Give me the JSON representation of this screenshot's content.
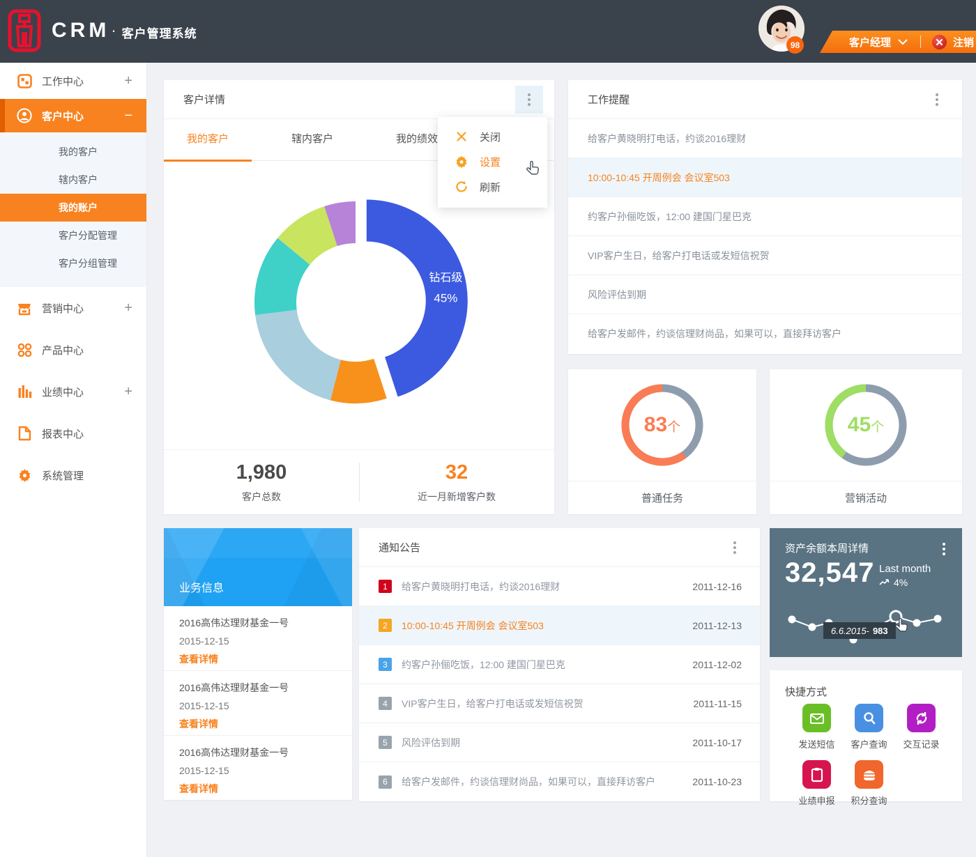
{
  "topbar": {
    "logo_text": "CRM",
    "logo_separator": "·",
    "app_subtitle": "客户管理系统",
    "avatar_badge": "98",
    "role_label": "客户经理",
    "logout_label": "注销"
  },
  "sidebar": {
    "items": [
      {
        "label": "工作中心",
        "icon": "grid-icon",
        "expand": "+",
        "active": false
      },
      {
        "label": "客户中心",
        "icon": "user-icon",
        "expand": "−",
        "active": true
      },
      {
        "label": "营销中心",
        "icon": "shop-icon",
        "expand": "+",
        "active": false
      },
      {
        "label": "产品中心",
        "icon": "products-icon",
        "expand": "",
        "active": false
      },
      {
        "label": "业绩中心",
        "icon": "chart-bars-icon",
        "expand": "+",
        "active": false
      },
      {
        "label": "报表中心",
        "icon": "report-icon",
        "expand": "",
        "active": false
      },
      {
        "label": "系统管理",
        "icon": "gear-icon",
        "expand": "",
        "active": false
      }
    ],
    "submenu": {
      "parent": "客户中心",
      "items": [
        {
          "label": "我的客户",
          "active": false
        },
        {
          "label": "辖内客户",
          "active": false
        },
        {
          "label": "我的账户",
          "active": true
        },
        {
          "label": "客户分配管理",
          "active": false
        },
        {
          "label": "客户分组管理",
          "active": false
        }
      ]
    }
  },
  "customer_card": {
    "title": "客户详情",
    "tabs": [
      {
        "label": "我的客户",
        "active": true
      },
      {
        "label": "辖内客户",
        "active": false
      },
      {
        "label": "我的绩效",
        "active": false
      }
    ],
    "stats": [
      {
        "value": "1,980",
        "label": "客户总数",
        "accent": false
      },
      {
        "value": "32",
        "label": "近一月新增客户数",
        "accent": true
      }
    ]
  },
  "context_menu": {
    "items": [
      {
        "label": "关闭",
        "icon": "close-icon",
        "highlighted": false
      },
      {
        "label": "设置",
        "icon": "gear-icon",
        "highlighted": true
      },
      {
        "label": "刷新",
        "icon": "refresh-icon",
        "highlighted": false
      }
    ]
  },
  "reminders": {
    "title": "工作提醒",
    "items": [
      {
        "text": "给客户黄晓明打电话，约谈2016理财",
        "highlighted": false
      },
      {
        "text": "10:00-10:45 开周例会 会议室503",
        "highlighted": true
      },
      {
        "text": "约客户孙俪吃饭，12:00 建国门星巴克",
        "highlighted": false
      },
      {
        "text": "VIP客户生日，给客户打电话或发短信祝贺",
        "highlighted": false
      },
      {
        "text": "风险评估到期",
        "highlighted": false
      },
      {
        "text": "给客户发邮件，约谈信理财尚品，如果可以，直接拜访客户",
        "highlighted": false
      }
    ]
  },
  "business_card": {
    "title": "业务信息",
    "items": [
      {
        "name": "2016高伟达理财基金一号",
        "date": "2015-12-15",
        "link": "查看详情"
      },
      {
        "name": "2016高伟达理财基金一号",
        "date": "2015-12-15",
        "link": "查看详情"
      },
      {
        "name": "2016高伟达理财基金一号",
        "date": "2015-12-15",
        "link": "查看详情"
      }
    ]
  },
  "notices": {
    "title": "通知公告",
    "items": [
      {
        "num": "1",
        "text": "给客户黄晓明打电话，约谈2016理财",
        "date": "2011-12-16",
        "badge_color": "#d0021b",
        "highlighted": false
      },
      {
        "num": "2",
        "text": "10:00-10:45 开周例会 会议室503",
        "date": "2011-12-13",
        "badge_color": "#f5a623",
        "highlighted": true
      },
      {
        "num": "3",
        "text": "约客户孙俪吃饭，12:00 建国门星巴克",
        "date": "2011-12-02",
        "badge_color": "#4aa3e8",
        "highlighted": false
      },
      {
        "num": "4",
        "text": "VIP客户生日，给客户打电话或发短信祝贺",
        "date": "2011-11-15",
        "badge_color": "#99a3ae",
        "highlighted": false
      },
      {
        "num": "5",
        "text": "风险评估到期",
        "date": "2011-10-17",
        "badge_color": "#99a3ae",
        "highlighted": false
      },
      {
        "num": "6",
        "text": "给客户发邮件，约谈信理财尚品，如果可以，直接拜访客户",
        "date": "2011-10-23",
        "badge_color": "#99a3ae",
        "highlighted": false
      }
    ]
  },
  "asset_card": {
    "title": "资产余额本周详情",
    "amount": "32,547",
    "comparison_label": "Last month",
    "comparison_value": "4%",
    "tooltip": {
      "date": "6.6.2015",
      "separator": "-",
      "value": "983"
    }
  },
  "quick_actions": {
    "title": "快捷方式",
    "items": [
      {
        "label": "发送短信",
        "icon": "mail-icon",
        "color": "#6abf27"
      },
      {
        "label": "客户查询",
        "icon": "search-icon",
        "color": "#4a90e2"
      },
      {
        "label": "交互记录",
        "icon": "sync-icon",
        "color": "#b11fc4"
      },
      {
        "label": "业绩申报",
        "icon": "clipboard-icon",
        "color": "#d6154e"
      },
      {
        "label": "积分查询",
        "icon": "burger-icon",
        "color": "#f1662c"
      }
    ]
  },
  "chart_data": [
    {
      "type": "pie",
      "title": "客户详情 — 客户等级占比环形图",
      "labels": [
        "钻石级",
        "",
        "",
        "",
        "",
        ""
      ],
      "values": [
        45,
        9,
        19,
        13,
        9,
        5
      ],
      "colors": [
        "#3c5ae0",
        "#f8911c",
        "#a9cede",
        "#3fd0c8",
        "#c9e45f",
        "#b683d8"
      ],
      "donut": true,
      "exploded_index": 0,
      "center_label": "钻石级",
      "center_value": "45%",
      "legend_position": "none"
    },
    {
      "type": "donut-progress",
      "card_label": "普通任务",
      "number": "83",
      "unit": "个",
      "percent": 60,
      "color": "#f97c54",
      "track_color": "#8d9dad"
    },
    {
      "type": "donut-progress",
      "card_label": "营销活动",
      "number": "45",
      "unit": "个",
      "percent": 40,
      "color": "#9ede63",
      "track_color": "#8d9dad"
    },
    {
      "type": "line",
      "title": "资产余额本周 sparkline",
      "x": [
        1,
        2,
        3,
        4,
        5,
        6,
        7
      ],
      "y": [
        34,
        45,
        39,
        63,
        30,
        39,
        33
      ],
      "highlight_index": 4,
      "highlight_tooltip": "6.6.2015 - 983",
      "line_color": "#ffffff",
      "grid": false
    }
  ]
}
